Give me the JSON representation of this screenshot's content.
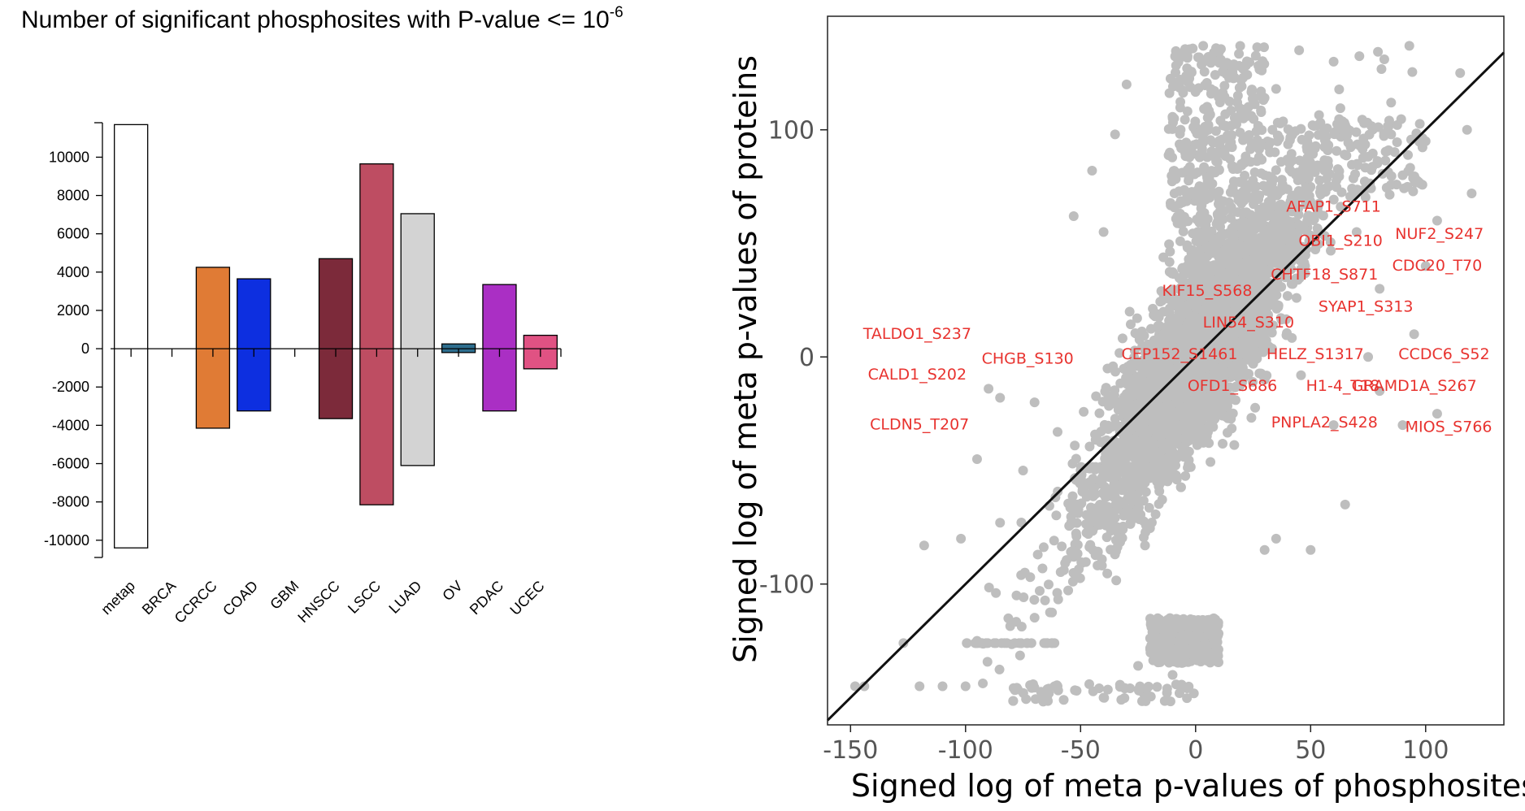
{
  "chart_data": [
    {
      "type": "bar",
      "title_main": "Number of significant phosphosites with P-value <= 10",
      "title_exponent": "-6",
      "categories": [
        "metap",
        "BRCA",
        "CCRCC",
        "COAD",
        "GBM",
        "HNSCC",
        "LSCC",
        "LUAD",
        "OV",
        "PDAC",
        "UCEC"
      ],
      "series": [
        {
          "values": [
            11700,
            0,
            4250,
            3650,
            0,
            4700,
            9650,
            7050,
            250,
            3350,
            700
          ]
        },
        {
          "values": [
            -10400,
            0,
            -4150,
            -3250,
            0,
            -3650,
            -8150,
            -6100,
            -200,
            -3250,
            -1050
          ]
        }
      ],
      "colors": [
        "#ffffff",
        "#ffffff",
        "#e07b35",
        "#0d2fe0",
        "#ffffff",
        "#7c2a3a",
        "#be4d62",
        "#d3d3d3",
        "#2e6e8e",
        "#aa2fc4",
        "#e05283"
      ],
      "yticks": [
        10000,
        8000,
        6000,
        4000,
        2000,
        0,
        -2000,
        -4000,
        -6000,
        -8000,
        -10000
      ],
      "ylim": [
        -10900,
        11800
      ],
      "xlabel": "",
      "ylabel": ""
    },
    {
      "type": "scatter",
      "xlabel": "Signed log of meta p-values of phosphosites",
      "ylabel": "Signed log of meta p-values of proteins",
      "xlim": [
        -160,
        134
      ],
      "ylim": [
        -162,
        150
      ],
      "xticks": [
        -150,
        -100,
        -50,
        0,
        50,
        100
      ],
      "yticks": [
        100,
        0,
        -100
      ],
      "point_color": "#bebebe",
      "diagonal": [
        [
          -160,
          -160
        ],
        [
          134,
          134
        ]
      ],
      "labels": [
        {
          "text": "AFAP1_S711",
          "x": 60,
          "y": 64
        },
        {
          "text": "NUF2_S247",
          "x": 106,
          "y": 52
        },
        {
          "text": "OBI1_S210",
          "x": 63,
          "y": 49
        },
        {
          "text": "CDC20_T70",
          "x": 105,
          "y": 38
        },
        {
          "text": "CHTF18_S871",
          "x": 56,
          "y": 34
        },
        {
          "text": "KIF15_S568",
          "x": 5,
          "y": 27
        },
        {
          "text": "SYAP1_S313",
          "x": 74,
          "y": 20
        },
        {
          "text": "LIN54_S310",
          "x": 23,
          "y": 13
        },
        {
          "text": "TALDO1_S237",
          "x": -121,
          "y": 8
        },
        {
          "text": "CEP152_S1461",
          "x": -7,
          "y": -1
        },
        {
          "text": "HELZ_S1317",
          "x": 52,
          "y": -1
        },
        {
          "text": "CCDC6_S52",
          "x": 108,
          "y": -1
        },
        {
          "text": "CHGB_S130",
          "x": -73,
          "y": -3
        },
        {
          "text": "CALD1_S202",
          "x": -121,
          "y": -10
        },
        {
          "text": "OFD1_S686",
          "x": 16,
          "y": -15
        },
        {
          "text": "H1-4_T18",
          "x": 64,
          "y": -15
        },
        {
          "text": "GRAMD1A_S267",
          "x": 95,
          "y": -15
        },
        {
          "text": "PNPLA2_S428",
          "x": 56,
          "y": -31
        },
        {
          "text": "MIOS_S766",
          "x": 110,
          "y": -33
        },
        {
          "text": "CLDN5_T207",
          "x": -120,
          "y": -32
        }
      ]
    }
  ]
}
